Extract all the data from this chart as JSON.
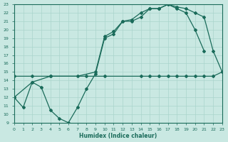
{
  "xlabel": "Humidex (Indice chaleur)",
  "xlim": [
    0,
    23
  ],
  "ylim": [
    9,
    23
  ],
  "xticks": [
    0,
    1,
    2,
    3,
    4,
    5,
    6,
    7,
    8,
    9,
    10,
    11,
    12,
    13,
    14,
    15,
    16,
    17,
    18,
    19,
    20,
    21,
    22,
    23
  ],
  "yticks": [
    9,
    10,
    11,
    12,
    13,
    14,
    15,
    16,
    17,
    18,
    19,
    20,
    21,
    22,
    23
  ],
  "bg_color": "#c9e8e2",
  "grid_color": "#aad4cc",
  "line_color": "#1a6b5a",
  "line1_x": [
    0,
    1,
    2,
    3,
    4,
    5,
    6,
    7,
    8,
    9,
    10,
    11,
    12,
    13,
    14,
    15,
    16,
    17,
    18,
    19,
    20,
    21
  ],
  "line1_y": [
    12.0,
    10.8,
    13.8,
    13.2,
    10.5,
    9.5,
    9.0,
    10.8,
    13.0,
    14.8,
    19.0,
    19.5,
    21.0,
    21.0,
    21.5,
    22.5,
    22.5,
    23.0,
    22.5,
    22.0,
    20.0,
    17.5
  ],
  "line2_x": [
    0,
    2,
    4,
    7,
    9,
    10,
    11,
    12,
    13,
    14,
    15,
    16,
    17,
    18,
    19,
    20,
    21,
    22,
    23
  ],
  "line2_y": [
    12.0,
    13.8,
    14.5,
    14.5,
    15.0,
    19.2,
    19.8,
    21.0,
    21.2,
    22.0,
    22.5,
    22.5,
    23.0,
    22.7,
    22.5,
    22.0,
    21.5,
    17.5,
    15.0
  ],
  "line3_x": [
    0,
    2,
    4,
    8,
    10,
    14,
    15,
    16,
    17,
    18,
    19,
    20,
    21,
    22,
    23
  ],
  "line3_y": [
    14.5,
    14.5,
    14.5,
    14.5,
    14.5,
    14.5,
    14.5,
    14.5,
    14.5,
    14.5,
    14.5,
    14.5,
    14.5,
    14.5,
    15.0
  ]
}
